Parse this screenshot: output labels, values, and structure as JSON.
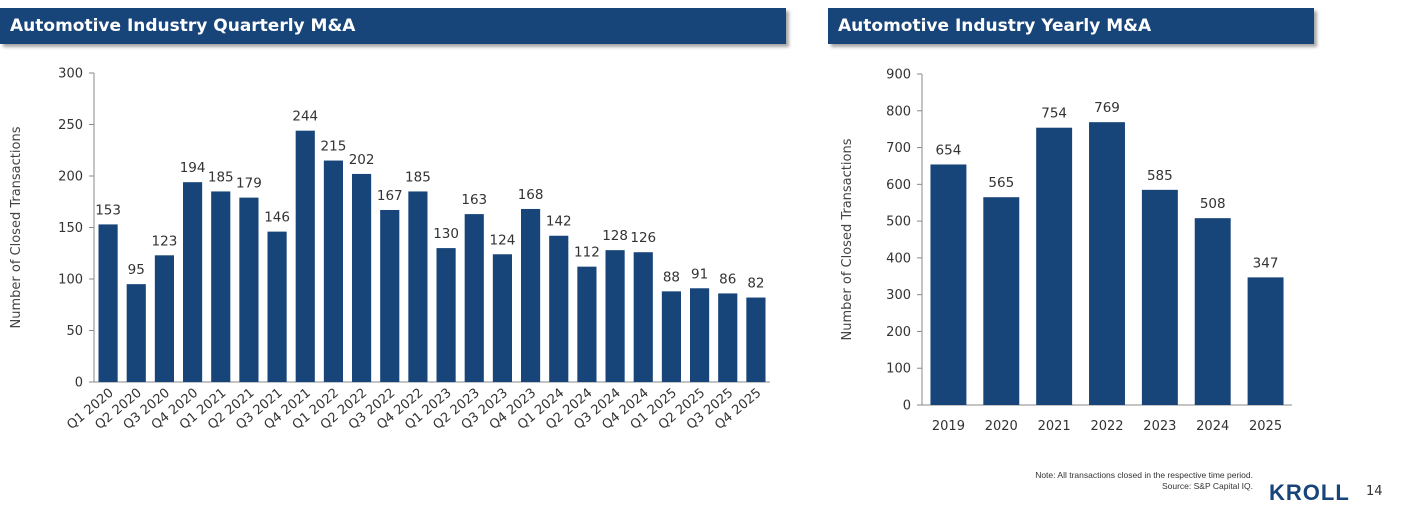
{
  "header": {
    "left_title": "Automotive Industry Quarterly M&A",
    "right_title": "Automotive Industry Yearly M&A"
  },
  "chart_data": [
    {
      "type": "bar",
      "title": "Automotive Industry Quarterly M&A",
      "ylabel": "Number of Closed Transactions",
      "xlabel": "",
      "ylim": [
        0,
        300
      ],
      "yticks": [
        0,
        50,
        100,
        150,
        200,
        250,
        300
      ],
      "categories": [
        "Q1 2020",
        "Q2 2020",
        "Q3 2020",
        "Q4 2020",
        "Q1 2021",
        "Q2 2021",
        "Q3 2021",
        "Q4 2021",
        "Q1 2022",
        "Q2 2022",
        "Q3 2022",
        "Q4 2022",
        "Q1 2023",
        "Q2 2023",
        "Q3 2023",
        "Q4 2023",
        "Q1 2024",
        "Q2 2024",
        "Q3 2024",
        "Q4 2024",
        "Q1 2025",
        "Q2 2025",
        "Q3 2025",
        "Q4 2025"
      ],
      "values": [
        153,
        95,
        123,
        194,
        185,
        179,
        146,
        244,
        215,
        202,
        167,
        185,
        130,
        163,
        124,
        168,
        142,
        112,
        128,
        126,
        88,
        91,
        86,
        82
      ],
      "bar_color": "#174479",
      "grid": false
    },
    {
      "type": "bar",
      "title": "Automotive Industry Yearly M&A",
      "ylabel": "Number of Closed Transactions",
      "xlabel": "",
      "ylim": [
        0,
        900
      ],
      "yticks": [
        0,
        100,
        200,
        300,
        400,
        500,
        600,
        700,
        800,
        900
      ],
      "categories": [
        "2019",
        "2020",
        "2021",
        "2022",
        "2023",
        "2024",
        "2025"
      ],
      "values": [
        654,
        565,
        754,
        769,
        585,
        508,
        347
      ],
      "bar_color": "#174479",
      "grid": false
    }
  ],
  "footer": {
    "note_line1": "Note: All transactions closed in the respective time period.",
    "note_line2": "Source: S&P Capital IQ.",
    "logo_text": "KROLL",
    "page_number": "14",
    "brand_color": "#174479"
  }
}
